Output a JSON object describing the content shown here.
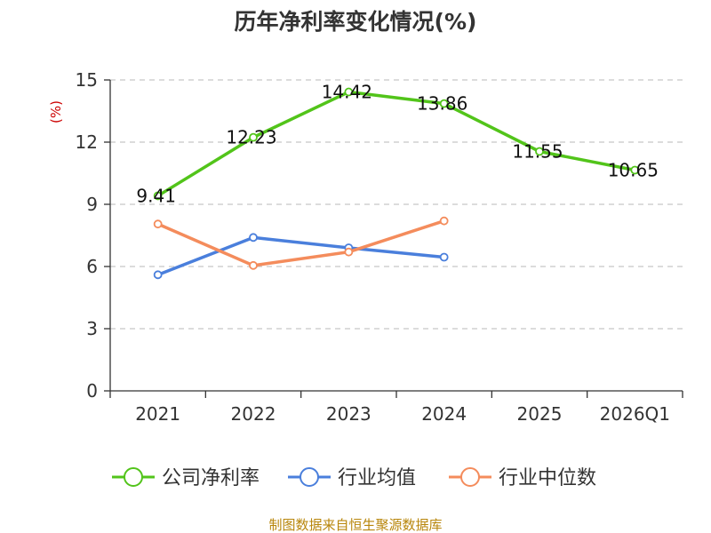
{
  "chart_data": {
    "type": "line",
    "title": "历年净利率变化情况(%)",
    "ylabel": "(%)",
    "xlabel": "",
    "categories": [
      "2021",
      "2022",
      "2023",
      "2024",
      "2025",
      "2026Q1"
    ],
    "ylim": [
      0,
      15
    ],
    "yticks": [
      0,
      3,
      6,
      9,
      12,
      15
    ],
    "grid": true,
    "legend_position": "bottom",
    "series": [
      {
        "name": "公司净利率",
        "color": "#52c41a",
        "values": [
          9.41,
          12.23,
          14.42,
          13.86,
          11.55,
          10.65
        ],
        "labels": [
          "9.41",
          "12.23",
          "14.42",
          "13.86",
          "11.55",
          "10.65"
        ]
      },
      {
        "name": "行业均值",
        "color": "#4a7fdc",
        "values": [
          5.6,
          7.4,
          6.9,
          6.45,
          null,
          null
        ]
      },
      {
        "name": "行业中位数",
        "color": "#f48c5c",
        "values": [
          8.05,
          6.05,
          6.7,
          8.2,
          null,
          null
        ]
      }
    ],
    "source": "制图数据来自恒生聚源数据库"
  }
}
